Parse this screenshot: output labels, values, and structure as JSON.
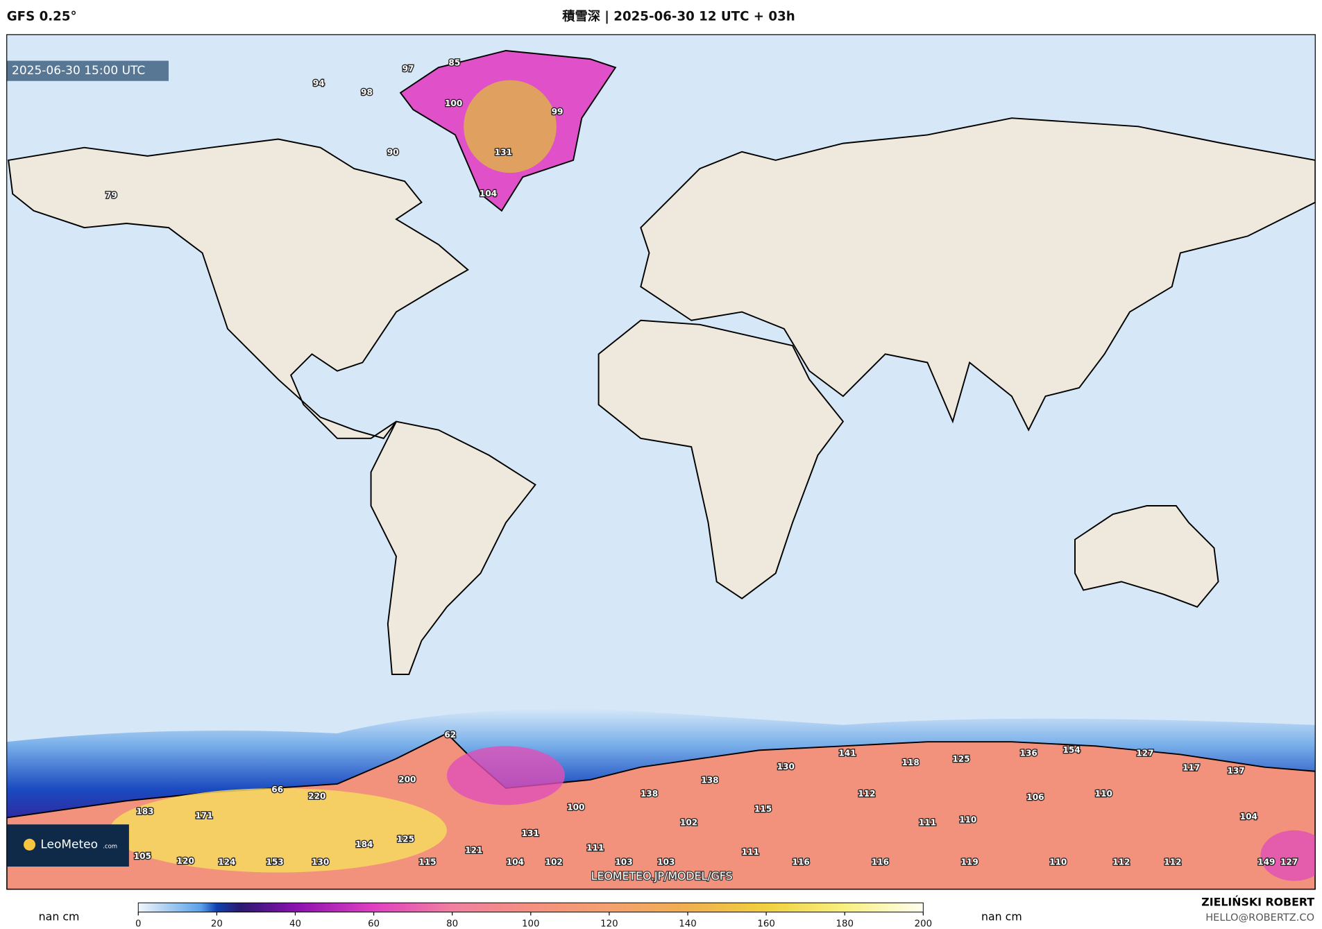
{
  "header": {
    "model": "GFS 0.25°",
    "title": "積雪深 | 2025-06-30 12 UTC + 03h"
  },
  "map": {
    "valid_time": "2025-06-30 15:00 UTC",
    "watermark": "LEOMETEO.JP/MODEL/GFS",
    "logo": "LeoMeteo",
    "logo_suffix": ".com",
    "snow_labels": [
      97,
      85,
      94,
      98,
      100,
      99,
      131,
      90,
      104,
      79,
      62,
      200,
      66,
      220,
      183,
      171,
      105,
      120,
      124,
      153,
      130,
      184,
      125,
      121,
      131,
      115,
      104,
      102,
      100,
      111,
      103,
      103,
      138,
      138,
      130,
      102,
      115,
      111,
      141,
      118,
      125,
      136,
      154,
      127,
      117,
      137,
      112,
      106,
      110,
      111,
      110,
      104,
      116,
      116,
      119,
      110,
      112,
      112,
      149,
      127
    ]
  },
  "colorbar": {
    "unit_left": "nan cm",
    "unit_right": "nan cm",
    "range": [
      0,
      200
    ],
    "ticks": [
      0,
      20,
      40,
      60,
      80,
      100,
      120,
      140,
      160,
      180,
      200
    ]
  },
  "footer": {
    "author": "ZIELIŃSKI ROBERT",
    "email": "HELLO@ROBERTZ.CO"
  }
}
